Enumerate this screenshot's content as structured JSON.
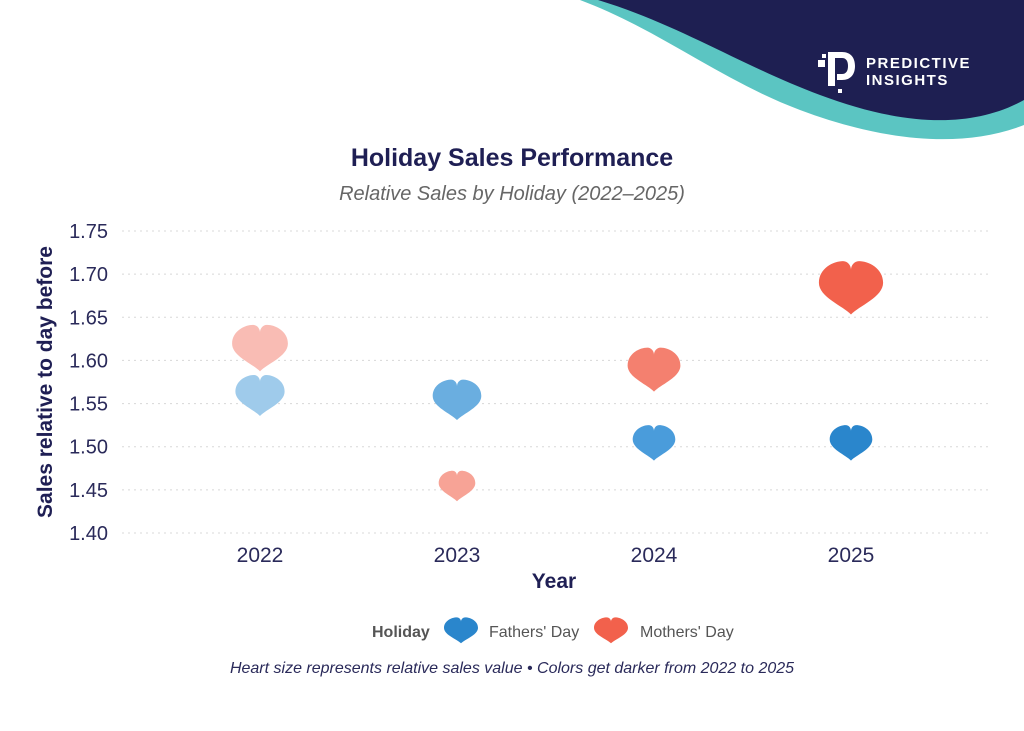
{
  "brand": {
    "name_line1": "PREDICTIVE",
    "name_line2": "INSIGHTS",
    "navy": "#1e1f52",
    "teal": "#5bc5c2"
  },
  "chart_data": {
    "type": "scatter",
    "marker": "heart",
    "title": "Holiday Sales Performance",
    "subtitle": "Relative Sales by Holiday (2022–2025)",
    "xlabel": "Year",
    "ylabel": "Sales relative to day before",
    "categories": [
      "2022",
      "2023",
      "2024",
      "2025"
    ],
    "ylim": [
      1.4,
      1.75
    ],
    "yticks": [
      "1.40",
      "1.45",
      "1.50",
      "1.55",
      "1.60",
      "1.65",
      "1.70",
      "1.75"
    ],
    "grid": true,
    "legend": {
      "title": "Holiday",
      "placement": "bottom"
    },
    "series": [
      {
        "name": "Fathers' Day",
        "base_color": "#2a86cc",
        "values": [
          1.56,
          1.555,
          1.505,
          1.505
        ],
        "colors": [
          "#9fcbeb",
          "#6aaee0",
          "#4a9cdb",
          "#2a86cc"
        ]
      },
      {
        "name": "Mothers' Day",
        "base_color": "#f2614c",
        "values": [
          1.615,
          1.455,
          1.59,
          1.685
        ],
        "colors": [
          "#f9bcb4",
          "#f7a396",
          "#f4806f",
          "#f2614c"
        ]
      }
    ],
    "footnote": "Heart size represents relative sales value • Colors get darker from 2022 to 2025"
  }
}
